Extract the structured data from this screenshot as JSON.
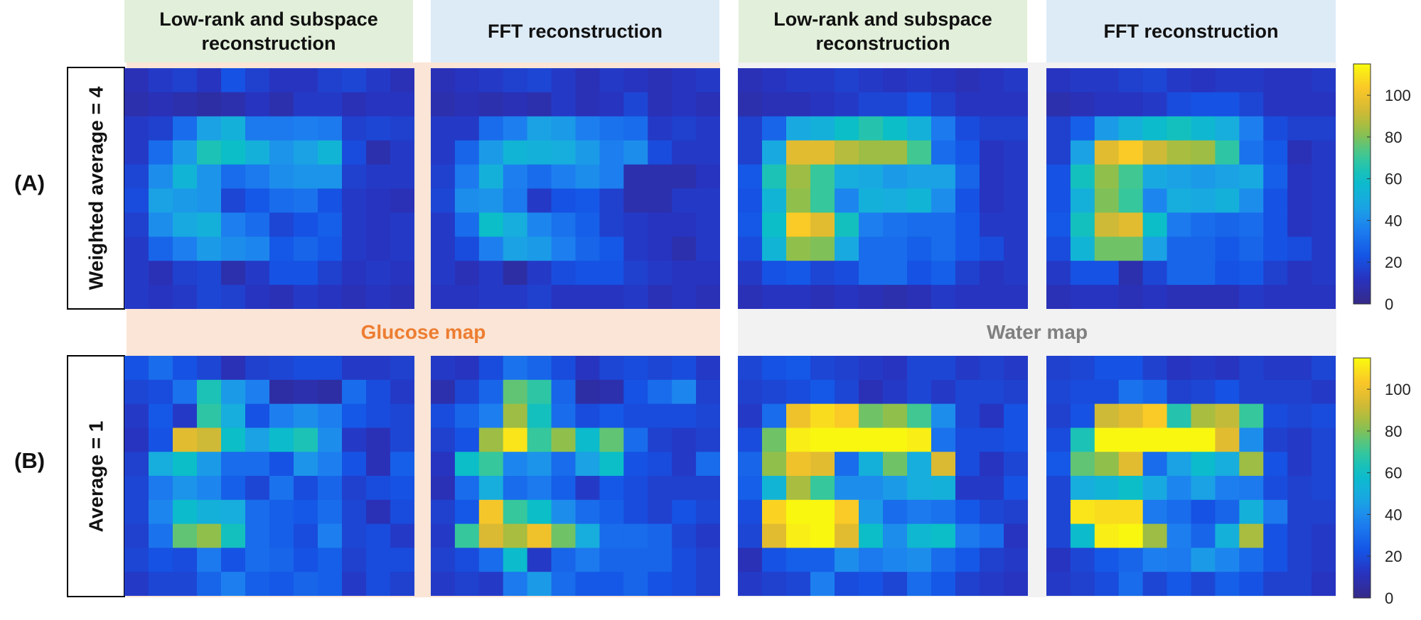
{
  "headers": [
    "Low-rank and subspace\nreconstruction",
    "FFT reconstruction",
    "Low-rank and subspace\nreconstruction",
    "FFT reconstruction"
  ],
  "rows": [
    {
      "tag": "(A)",
      "label": "Weighted average = 4"
    },
    {
      "tag": "(B)",
      "label": "Average = 1"
    }
  ],
  "bands": {
    "glucose": {
      "label": "Glucose map",
      "color": "#ed7d31",
      "bg": "#fbe5d6"
    },
    "water": {
      "label": "Water map",
      "color": "#808080",
      "bg": "#f2f2f2"
    }
  },
  "colorbar": {
    "ticks": [
      "0",
      "20",
      "40",
      "60",
      "80",
      "100"
    ],
    "min": 0,
    "max": 115
  },
  "chart_data": {
    "type": "heatmap",
    "colormap": "parula",
    "value_range": [
      0,
      115
    ],
    "panels": [
      {
        "row": "A",
        "col": 1,
        "values": [
          [
            10,
            14,
            16,
            12,
            22,
            16,
            12,
            12,
            16,
            18,
            14,
            10
          ],
          [
            8,
            10,
            8,
            6,
            8,
            12,
            8,
            14,
            14,
            10,
            12,
            12
          ],
          [
            14,
            16,
            30,
            46,
            52,
            34,
            34,
            36,
            34,
            16,
            18,
            16
          ],
          [
            14,
            30,
            44,
            64,
            60,
            52,
            42,
            46,
            54,
            20,
            8,
            14
          ],
          [
            18,
            40,
            54,
            42,
            30,
            34,
            40,
            42,
            42,
            16,
            14,
            14
          ],
          [
            20,
            46,
            44,
            42,
            18,
            24,
            30,
            32,
            22,
            14,
            12,
            10
          ],
          [
            16,
            40,
            48,
            52,
            36,
            30,
            18,
            22,
            26,
            14,
            12,
            14
          ],
          [
            14,
            28,
            36,
            44,
            40,
            38,
            24,
            28,
            24,
            14,
            12,
            14
          ],
          [
            14,
            10,
            16,
            18,
            8,
            14,
            22,
            22,
            16,
            12,
            14,
            12
          ],
          [
            14,
            12,
            14,
            18,
            16,
            12,
            10,
            14,
            12,
            10,
            12,
            10
          ]
        ]
      },
      {
        "row": "A",
        "col": 2,
        "values": [
          [
            10,
            12,
            14,
            16,
            18,
            14,
            10,
            14,
            12,
            10,
            12,
            14
          ],
          [
            8,
            10,
            8,
            10,
            8,
            14,
            10,
            12,
            18,
            10,
            12,
            10
          ],
          [
            14,
            14,
            30,
            36,
            46,
            44,
            36,
            32,
            30,
            14,
            16,
            14
          ],
          [
            14,
            28,
            44,
            54,
            52,
            50,
            44,
            36,
            40,
            20,
            14,
            14
          ],
          [
            16,
            34,
            52,
            36,
            30,
            36,
            40,
            36,
            8,
            8,
            8,
            12
          ],
          [
            18,
            40,
            42,
            34,
            14,
            22,
            24,
            16,
            8,
            8,
            14,
            14
          ],
          [
            14,
            30,
            60,
            50,
            38,
            32,
            26,
            16,
            14,
            12,
            12,
            14
          ],
          [
            14,
            20,
            36,
            46,
            44,
            36,
            28,
            24,
            14,
            12,
            8,
            14
          ],
          [
            14,
            10,
            14,
            6,
            14,
            20,
            22,
            22,
            16,
            14,
            12,
            12
          ],
          [
            12,
            12,
            14,
            14,
            16,
            12,
            12,
            12,
            14,
            10,
            12,
            10
          ]
        ]
      },
      {
        "row": "A",
        "col": 3,
        "values": [
          [
            10,
            12,
            14,
            14,
            16,
            14,
            12,
            14,
            12,
            10,
            12,
            14
          ],
          [
            8,
            10,
            10,
            12,
            14,
            18,
            18,
            22,
            16,
            12,
            12,
            12
          ],
          [
            16,
            28,
            48,
            52,
            60,
            66,
            60,
            52,
            34,
            20,
            16,
            16
          ],
          [
            16,
            48,
            96,
            96,
            88,
            84,
            84,
            72,
            30,
            24,
            12,
            14
          ],
          [
            24,
            64,
            84,
            70,
            50,
            48,
            44,
            46,
            46,
            28,
            12,
            14
          ],
          [
            22,
            54,
            82,
            70,
            38,
            52,
            50,
            54,
            40,
            22,
            12,
            14
          ],
          [
            24,
            60,
            104,
            96,
            62,
            36,
            32,
            30,
            30,
            24,
            14,
            14
          ],
          [
            20,
            54,
            82,
            80,
            48,
            30,
            30,
            26,
            30,
            24,
            20,
            14
          ],
          [
            14,
            22,
            24,
            18,
            20,
            30,
            30,
            22,
            26,
            16,
            12,
            14
          ],
          [
            10,
            12,
            12,
            10,
            12,
            10,
            8,
            10,
            14,
            12,
            12,
            12
          ]
        ]
      },
      {
        "row": "A",
        "col": 4,
        "values": [
          [
            12,
            14,
            14,
            16,
            18,
            14,
            12,
            14,
            14,
            12,
            12,
            14
          ],
          [
            8,
            10,
            12,
            12,
            14,
            20,
            22,
            22,
            18,
            12,
            12,
            12
          ],
          [
            16,
            26,
            44,
            52,
            58,
            62,
            56,
            50,
            36,
            20,
            16,
            16
          ],
          [
            16,
            46,
            96,
            104,
            92,
            86,
            84,
            68,
            32,
            24,
            10,
            14
          ],
          [
            22,
            62,
            82,
            72,
            48,
            46,
            44,
            46,
            48,
            26,
            12,
            14
          ],
          [
            22,
            52,
            80,
            70,
            38,
            50,
            48,
            52,
            40,
            22,
            12,
            14
          ],
          [
            24,
            62,
            92,
            96,
            60,
            34,
            30,
            28,
            30,
            22,
            12,
            14
          ],
          [
            20,
            54,
            78,
            78,
            46,
            28,
            28,
            24,
            28,
            22,
            20,
            14
          ],
          [
            14,
            22,
            22,
            8,
            18,
            28,
            28,
            22,
            24,
            16,
            12,
            14
          ],
          [
            10,
            12,
            12,
            10,
            12,
            10,
            10,
            10,
            14,
            12,
            12,
            12
          ]
        ]
      },
      {
        "row": "B",
        "col": 1,
        "values": [
          [
            22,
            30,
            22,
            18,
            10,
            16,
            18,
            20,
            20,
            14,
            14,
            16
          ],
          [
            18,
            20,
            32,
            64,
            44,
            36,
            6,
            8,
            6,
            30,
            20,
            14
          ],
          [
            14,
            24,
            14,
            68,
            50,
            22,
            36,
            40,
            36,
            24,
            20,
            18
          ],
          [
            12,
            22,
            96,
            92,
            60,
            46,
            58,
            64,
            40,
            14,
            10,
            18
          ],
          [
            16,
            50,
            60,
            44,
            30,
            30,
            22,
            42,
            36,
            22,
            10,
            26
          ],
          [
            18,
            34,
            42,
            38,
            26,
            18,
            32,
            20,
            28,
            16,
            20,
            22
          ],
          [
            18,
            38,
            58,
            52,
            50,
            30,
            26,
            24,
            30,
            18,
            10,
            20
          ],
          [
            16,
            32,
            76,
            82,
            62,
            30,
            26,
            20,
            36,
            18,
            20,
            14
          ],
          [
            18,
            22,
            20,
            34,
            22,
            30,
            28,
            22,
            26,
            16,
            20,
            20
          ],
          [
            14,
            18,
            18,
            28,
            36,
            26,
            24,
            28,
            26,
            14,
            20,
            16
          ]
        ]
      },
      {
        "row": "B",
        "col": 2,
        "values": [
          [
            14,
            12,
            20,
            32,
            28,
            20,
            12,
            18,
            20,
            18,
            20,
            14
          ],
          [
            8,
            18,
            28,
            76,
            68,
            28,
            6,
            8,
            22,
            30,
            38,
            16
          ],
          [
            20,
            28,
            36,
            84,
            62,
            30,
            20,
            24,
            20,
            20,
            20,
            18
          ],
          [
            16,
            22,
            84,
            110,
            70,
            82,
            58,
            76,
            30,
            16,
            14,
            16
          ],
          [
            12,
            60,
            70,
            38,
            42,
            30,
            46,
            60,
            22,
            20,
            14,
            30
          ],
          [
            10,
            30,
            50,
            30,
            34,
            26,
            14,
            24,
            20,
            16,
            16,
            16
          ],
          [
            16,
            24,
            102,
            70,
            60,
            40,
            30,
            26,
            20,
            16,
            22,
            18
          ],
          [
            14,
            70,
            94,
            86,
            100,
            78,
            50,
            30,
            30,
            28,
            18,
            14
          ],
          [
            16,
            20,
            30,
            58,
            14,
            28,
            34,
            28,
            28,
            28,
            20,
            16
          ],
          [
            14,
            16,
            14,
            34,
            44,
            30,
            24,
            24,
            28,
            22,
            20,
            16
          ]
        ]
      },
      {
        "row": "B",
        "col": 3,
        "values": [
          [
            18,
            22,
            24,
            18,
            16,
            14,
            12,
            18,
            18,
            14,
            16,
            14
          ],
          [
            16,
            18,
            20,
            24,
            18,
            10,
            14,
            18,
            14,
            18,
            18,
            16
          ],
          [
            14,
            30,
            100,
            108,
            104,
            78,
            82,
            72,
            40,
            18,
            12,
            22
          ],
          [
            20,
            78,
            112,
            114,
            114,
            114,
            114,
            112,
            32,
            20,
            20,
            22
          ],
          [
            28,
            82,
            100,
            96,
            30,
            52,
            78,
            50,
            94,
            20,
            12,
            18
          ],
          [
            26,
            54,
            86,
            70,
            40,
            40,
            44,
            50,
            52,
            14,
            14,
            22
          ],
          [
            20,
            106,
            114,
            114,
            104,
            44,
            30,
            34,
            32,
            24,
            18,
            16
          ],
          [
            18,
            96,
            112,
            114,
            96,
            60,
            40,
            56,
            60,
            34,
            30,
            12
          ],
          [
            10,
            22,
            26,
            26,
            40,
            34,
            38,
            40,
            30,
            24,
            16,
            14
          ],
          [
            14,
            16,
            18,
            36,
            20,
            22,
            18,
            30,
            24,
            16,
            14,
            12
          ]
        ]
      },
      {
        "row": "B",
        "col": 4,
        "values": [
          [
            16,
            18,
            22,
            22,
            16,
            12,
            14,
            12,
            16,
            14,
            14,
            18
          ],
          [
            18,
            20,
            20,
            32,
            28,
            16,
            18,
            22,
            16,
            16,
            16,
            14
          ],
          [
            16,
            22,
            92,
            96,
            104,
            66,
            86,
            90,
            70,
            20,
            18,
            20
          ],
          [
            20,
            64,
            114,
            114,
            114,
            114,
            114,
            96,
            40,
            16,
            14,
            18
          ],
          [
            24,
            76,
            82,
            96,
            30,
            46,
            58,
            50,
            84,
            22,
            14,
            18
          ],
          [
            18,
            50,
            54,
            60,
            48,
            38,
            46,
            36,
            34,
            20,
            16,
            18
          ],
          [
            18,
            110,
            108,
            108,
            34,
            30,
            22,
            28,
            52,
            34,
            16,
            16
          ],
          [
            18,
            58,
            112,
            114,
            84,
            36,
            28,
            52,
            86,
            22,
            16,
            14
          ],
          [
            12,
            18,
            24,
            28,
            36,
            34,
            44,
            38,
            30,
            22,
            16,
            14
          ],
          [
            14,
            16,
            20,
            30,
            18,
            24,
            18,
            26,
            22,
            16,
            16,
            12
          ]
        ]
      }
    ]
  }
}
